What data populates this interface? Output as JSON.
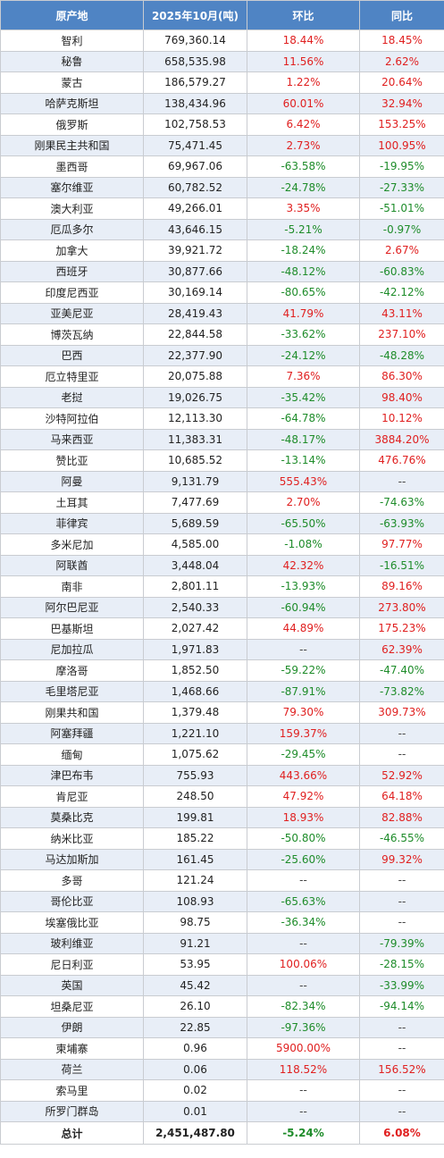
{
  "headers": [
    "原产地",
    "2025年10月(吨)",
    "环比",
    "同比"
  ],
  "rows": [
    [
      "智利",
      "769,360.14",
      "18.44%",
      "18.45%"
    ],
    [
      "秘鲁",
      "658,535.98",
      "11.56%",
      "2.62%"
    ],
    [
      "蒙古",
      "186,579.27",
      "1.22%",
      "20.64%"
    ],
    [
      "哈萨克斯坦",
      "138,434.96",
      "60.01%",
      "32.94%"
    ],
    [
      "俄罗斯",
      "102,758.53",
      "6.42%",
      "153.25%"
    ],
    [
      "刚果民主共和国",
      "75,471.45",
      "2.73%",
      "100.95%"
    ],
    [
      "墨西哥",
      "69,967.06",
      "-63.58%",
      "-19.95%"
    ],
    [
      "塞尔维亚",
      "60,782.52",
      "-24.78%",
      "-27.33%"
    ],
    [
      "澳大利亚",
      "49,266.01",
      "3.35%",
      "-51.01%"
    ],
    [
      "厄瓜多尔",
      "43,646.15",
      "-5.21%",
      "-0.97%"
    ],
    [
      "加拿大",
      "39,921.72",
      "-18.24%",
      "2.67%"
    ],
    [
      "西班牙",
      "30,877.66",
      "-48.12%",
      "-60.83%"
    ],
    [
      "印度尼西亚",
      "30,169.14",
      "-80.65%",
      "-42.12%"
    ],
    [
      "亚美尼亚",
      "28,419.43",
      "41.79%",
      "43.11%"
    ],
    [
      "博茨瓦纳",
      "22,844.58",
      "-33.62%",
      "237.10%"
    ],
    [
      "巴西",
      "22,377.90",
      "-24.12%",
      "-48.28%"
    ],
    [
      "厄立特里亚",
      "20,075.88",
      "7.36%",
      "86.30%"
    ],
    [
      "老挝",
      "19,026.75",
      "-35.42%",
      "98.40%"
    ],
    [
      "沙特阿拉伯",
      "12,113.30",
      "-64.78%",
      "10.12%"
    ],
    [
      "马来西亚",
      "11,383.31",
      "-48.17%",
      "3884.20%"
    ],
    [
      "赞比亚",
      "10,685.52",
      "-13.14%",
      "476.76%"
    ],
    [
      "阿曼",
      "9,131.79",
      "555.43%",
      "--"
    ],
    [
      "土耳其",
      "7,477.69",
      "2.70%",
      "-74.63%"
    ],
    [
      "菲律宾",
      "5,689.59",
      "-65.50%",
      "-63.93%"
    ],
    [
      "多米尼加",
      "4,585.00",
      "-1.08%",
      "97.77%"
    ],
    [
      "阿联酋",
      "3,448.04",
      "42.32%",
      "-16.51%"
    ],
    [
      "南非",
      "2,801.11",
      "-13.93%",
      "89.16%"
    ],
    [
      "阿尔巴尼亚",
      "2,540.33",
      "-60.94%",
      "273.80%"
    ],
    [
      "巴基斯坦",
      "2,027.42",
      "44.89%",
      "175.23%"
    ],
    [
      "尼加拉瓜",
      "1,971.83",
      "--",
      "62.39%"
    ],
    [
      "摩洛哥",
      "1,852.50",
      "-59.22%",
      "-47.40%"
    ],
    [
      "毛里塔尼亚",
      "1,468.66",
      "-87.91%",
      "-73.82%"
    ],
    [
      "刚果共和国",
      "1,379.48",
      "79.30%",
      "309.73%"
    ],
    [
      "阿塞拜疆",
      "1,221.10",
      "159.37%",
      "--"
    ],
    [
      "缅甸",
      "1,075.62",
      "-29.45%",
      "--"
    ],
    [
      "津巴布韦",
      "755.93",
      "443.66%",
      "52.92%"
    ],
    [
      "肯尼亚",
      "248.50",
      "47.92%",
      "64.18%"
    ],
    [
      "莫桑比克",
      "199.81",
      "18.93%",
      "82.88%"
    ],
    [
      "纳米比亚",
      "185.22",
      "-50.80%",
      "-46.55%"
    ],
    [
      "马达加斯加",
      "161.45",
      "-25.60%",
      "99.32%"
    ],
    [
      "多哥",
      "121.24",
      "--",
      "--"
    ],
    [
      "哥伦比亚",
      "108.93",
      "-65.63%",
      "--"
    ],
    [
      "埃塞俄比亚",
      "98.75",
      "-36.34%",
      "--"
    ],
    [
      "玻利维亚",
      "91.21",
      "--",
      "-79.39%"
    ],
    [
      "尼日利亚",
      "53.95",
      "100.06%",
      "-28.15%"
    ],
    [
      "英国",
      "45.42",
      "--",
      "-33.99%"
    ],
    [
      "坦桑尼亚",
      "26.10",
      "-82.34%",
      "-94.14%"
    ],
    [
      "伊朗",
      "22.85",
      "-97.36%",
      "--"
    ],
    [
      "柬埔寨",
      "0.96",
      "5900.00%",
      "--"
    ],
    [
      "荷兰",
      "0.06",
      "118.52%",
      "156.52%"
    ],
    [
      "索马里",
      "0.02",
      "--",
      "--"
    ],
    [
      "所罗门群岛",
      "0.01",
      "--",
      "--"
    ]
  ],
  "total": [
    "总计",
    "2,451,487.80",
    "-5.24%",
    "6.08%"
  ],
  "colors": {
    "header_bg": "#4f84c4",
    "stripe_bg": "#e8eef7",
    "positive": "#e02020",
    "negative": "#1e8c2a"
  }
}
